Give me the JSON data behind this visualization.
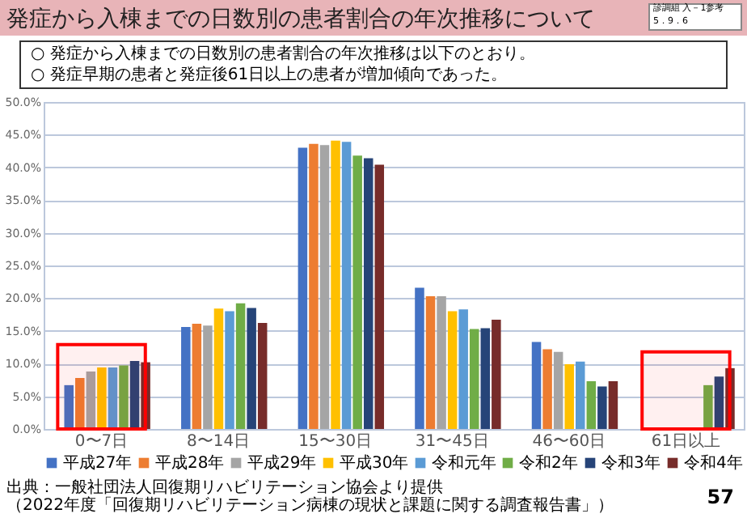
{
  "chart_data": {
    "type": "bar",
    "title": "発症から入棟までの日数別の患者割合の年次推移について",
    "subtitle": "○ 発症から入棟までの日数別の患者割合の年次推移は以下のとおり。\n○ 発症早期の患者と発症後61日以上の患者が増加傾向であった。",
    "annotations": [
      "診調組 入－1参考",
      "5．9．6",
      "出典：一般社団法人回復期リハビリテーション協会より提供",
      "（2022年度「回復期リハビリテーション病棟の現状と課題に関する調査報告書」）",
      "57"
    ],
    "categories": [
      "0〜7日",
      "8〜14日",
      "15〜30日",
      "31〜45日",
      "46〜60日",
      "61日以上"
    ],
    "series": [
      {
        "name": "平成27年",
        "color": "#4472c4",
        "values": [
          6.7,
          15.6,
          43.0,
          21.6,
          13.3,
          null
        ]
      },
      {
        "name": "平成28年",
        "color": "#ed7d31",
        "values": [
          7.8,
          16.1,
          43.6,
          20.3,
          12.2,
          null
        ]
      },
      {
        "name": "平成29年",
        "color": "#a5a5a5",
        "values": [
          8.8,
          15.8,
          43.4,
          20.3,
          11.8,
          null
        ]
      },
      {
        "name": "平成30年",
        "color": "#ffc000",
        "values": [
          9.4,
          18.4,
          44.1,
          18.0,
          9.9,
          null
        ]
      },
      {
        "name": "令和元年",
        "color": "#5b9bd5",
        "values": [
          9.4,
          18.0,
          43.9,
          18.3,
          10.3,
          null
        ]
      },
      {
        "name": "令和2年",
        "color": "#70ad47",
        "values": [
          9.7,
          19.2,
          41.8,
          15.3,
          7.3,
          6.7
        ]
      },
      {
        "name": "令和3年",
        "color": "#264478",
        "values": [
          10.4,
          18.5,
          41.4,
          15.4,
          6.5,
          8.0
        ]
      },
      {
        "name": "令和4年",
        "color": "#772c2a",
        "values": [
          10.2,
          16.2,
          40.4,
          16.7,
          7.3,
          9.3
        ]
      }
    ],
    "ylim": [
      0,
      50
    ],
    "yticks": [
      {
        "value": 0,
        "label": "0.0%"
      },
      {
        "value": 5,
        "label": "5.0%"
      },
      {
        "value": 10,
        "label": "10.0%"
      },
      {
        "value": 15,
        "label": "15.0%"
      },
      {
        "value": 20,
        "label": "20.0%"
      },
      {
        "value": 25,
        "label": "25.0%"
      },
      {
        "value": 30,
        "label": "30.0%"
      },
      {
        "value": 35,
        "label": "35.0%"
      },
      {
        "value": 40,
        "label": "40.0%"
      },
      {
        "value": 45,
        "label": "45.0%"
      },
      {
        "value": 50,
        "label": "50.0%"
      }
    ],
    "grid": "y",
    "legend": "bottom",
    "bands": [
      {
        "axis": "x",
        "from": "0〜7日",
        "to": "0〜7日",
        "color": "#ff0000"
      },
      {
        "axis": "x",
        "from": "61日以上",
        "to": "61日以上",
        "color": "#ff0000"
      }
    ]
  }
}
